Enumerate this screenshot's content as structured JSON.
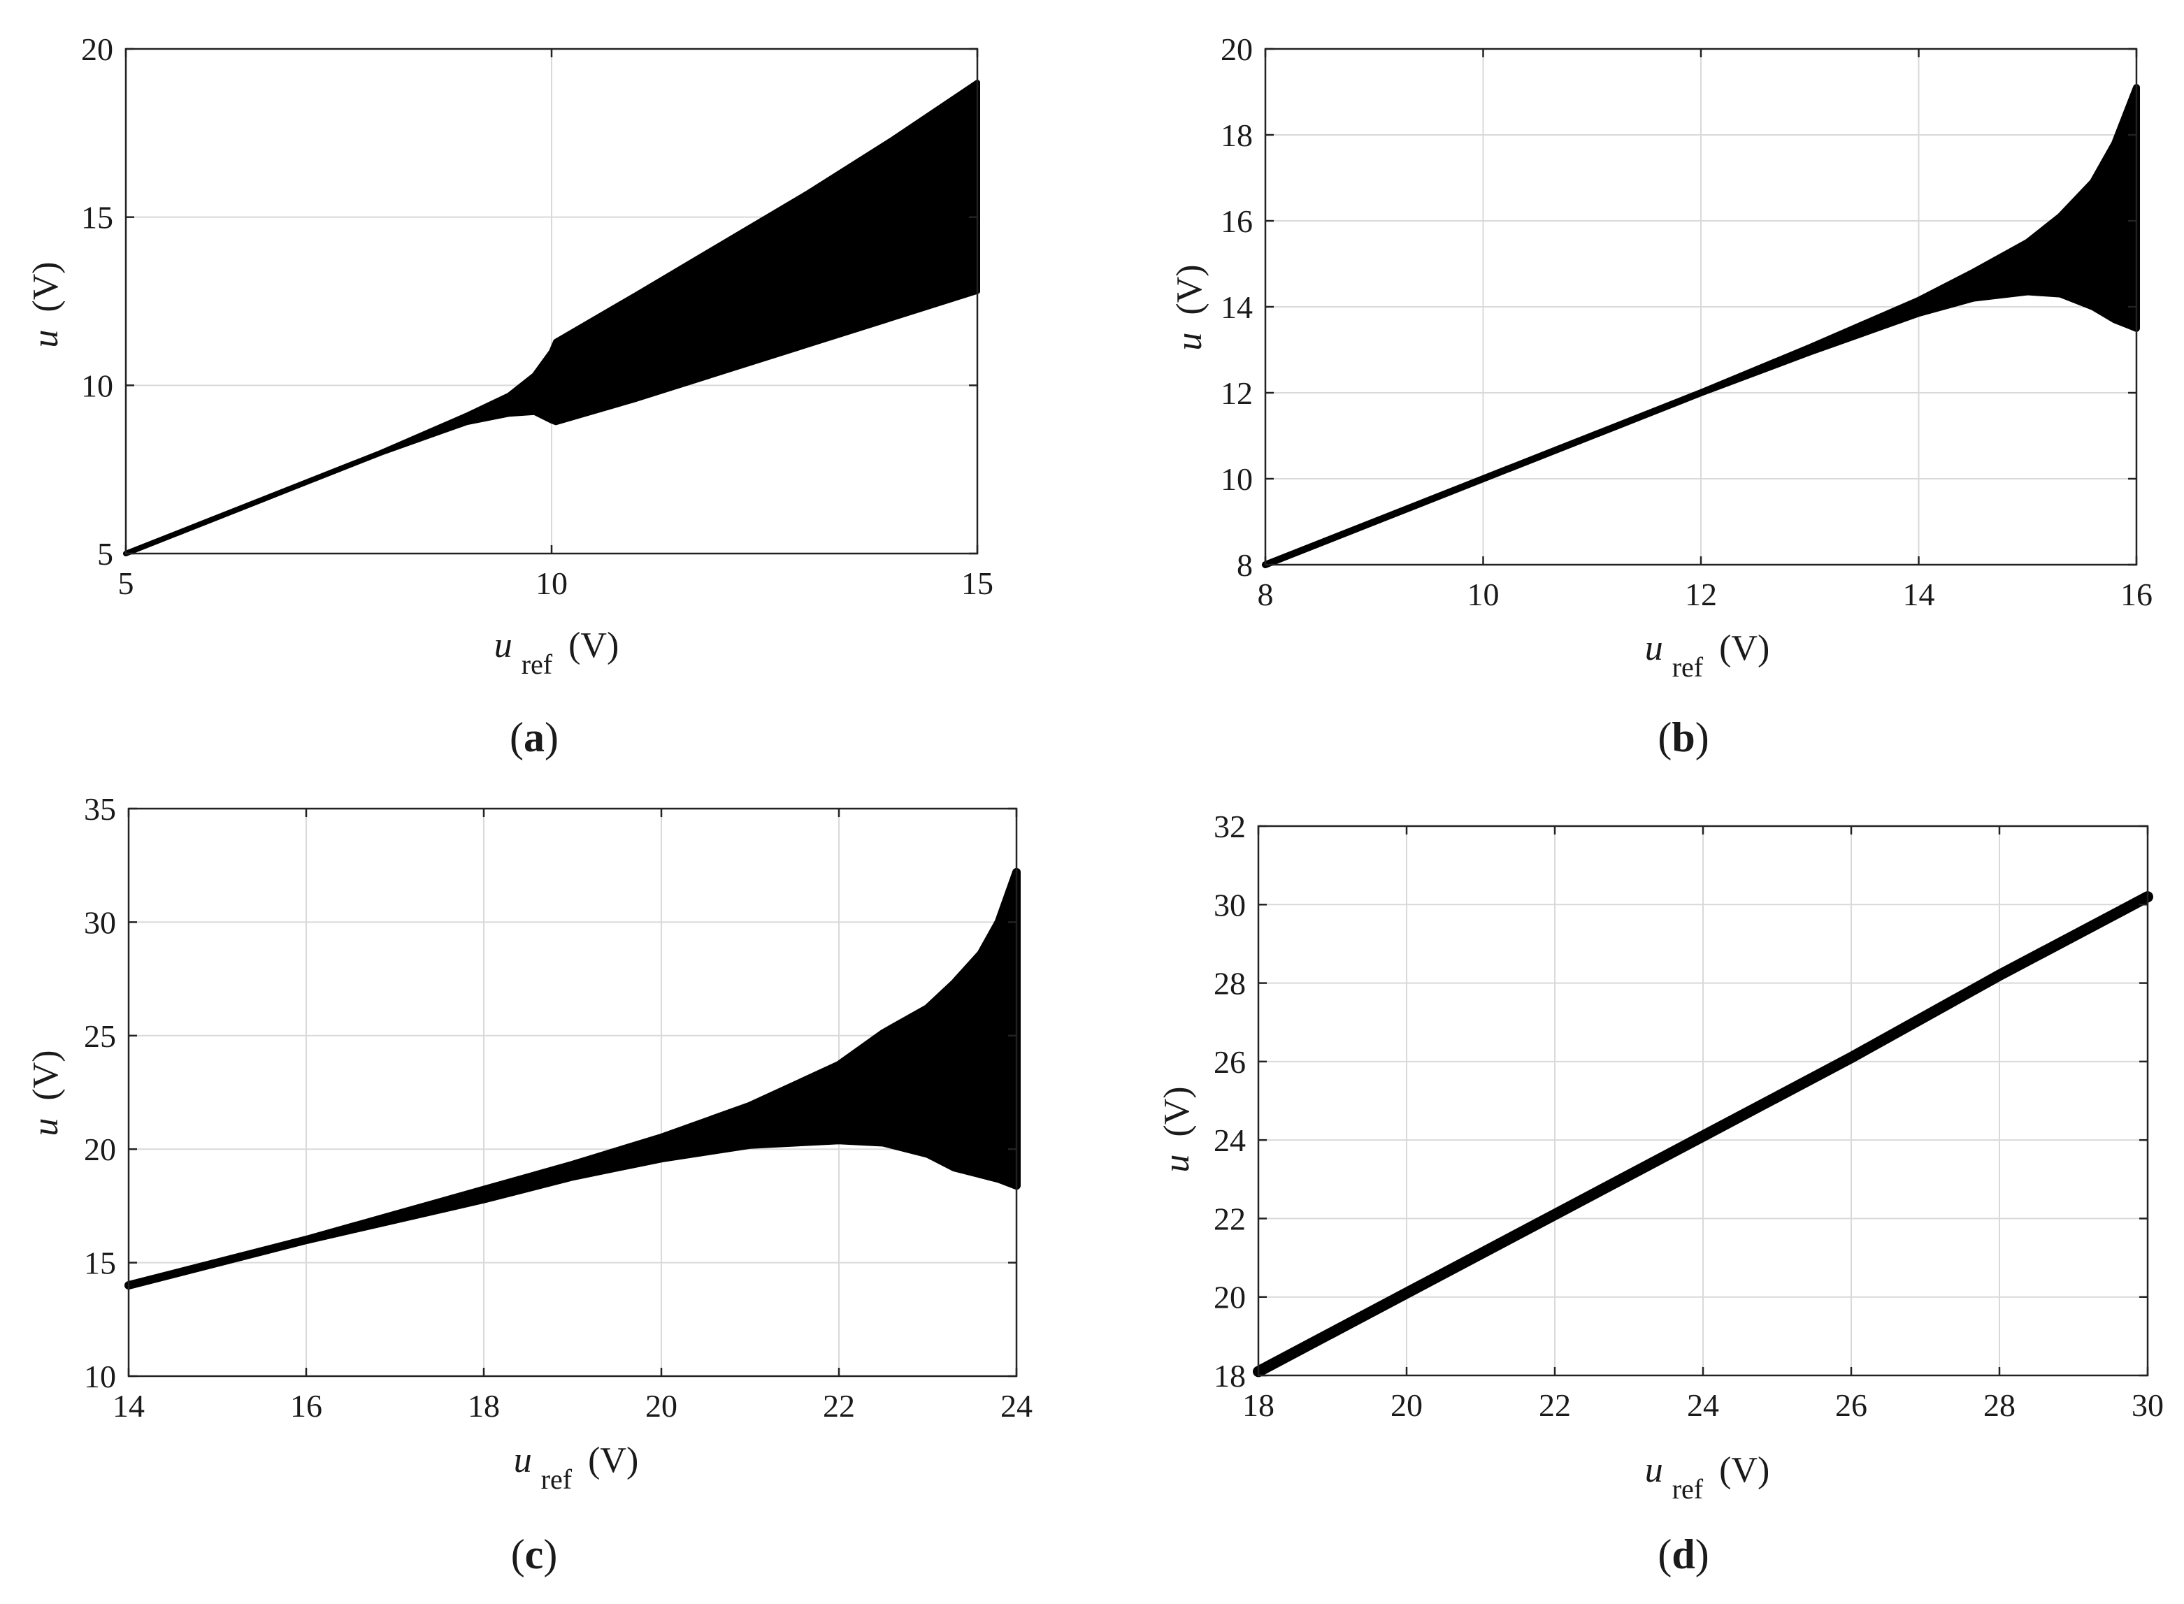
{
  "figure": {
    "panels": [
      {
        "id": "a",
        "panel_label": "a",
        "xlabel": {
          "symbol": "u",
          "subscript": "ref",
          "unit": "(V)"
        },
        "ylabel": {
          "symbol": "u",
          "unit": "(V)"
        }
      },
      {
        "id": "b",
        "panel_label": "b",
        "xlabel": {
          "symbol": "u",
          "subscript": "ref",
          "unit": "(V)"
        },
        "ylabel": {
          "symbol": "u",
          "unit": "(V)"
        }
      },
      {
        "id": "c",
        "panel_label": "c",
        "xlabel": {
          "symbol": "u",
          "subscript": "ref",
          "unit": "(V)"
        },
        "ylabel": {
          "symbol": "u",
          "unit": "(V)"
        }
      },
      {
        "id": "d",
        "panel_label": "d",
        "xlabel": {
          "symbol": "u",
          "subscript": "ref",
          "unit": "(V)"
        },
        "ylabel": {
          "symbol": "u",
          "unit": "(V)"
        }
      }
    ]
  },
  "chart_data": [
    {
      "type": "area",
      "panel": "a",
      "title": "",
      "xlabel": "uref (V)",
      "ylabel": "u (V)",
      "xlim": [
        5,
        15
      ],
      "ylim": [
        5,
        20
      ],
      "xticks": [
        5,
        10,
        15
      ],
      "yticks": [
        5,
        10,
        15,
        20
      ],
      "grid": true,
      "fill_color": "#000000",
      "series": [
        {
          "x": [
            5,
            6,
            7,
            8,
            9,
            9.5,
            9.8,
            10,
            10.05,
            11,
            12,
            13,
            14,
            15
          ],
          "lower": [
            5,
            6,
            7,
            8,
            8.9,
            9.15,
            9.2,
            8.95,
            8.9,
            9.6,
            10.4,
            11.2,
            12.0,
            12.8
          ],
          "upper": [
            5,
            6,
            7,
            8,
            9.1,
            9.7,
            10.3,
            11.0,
            11.3,
            12.7,
            14.2,
            15.7,
            17.3,
            19.0
          ]
        }
      ]
    },
    {
      "type": "area",
      "panel": "b",
      "title": "",
      "xlabel": "uref (V)",
      "ylabel": "u (V)",
      "xlim": [
        8,
        16
      ],
      "ylim": [
        8,
        20
      ],
      "xticks": [
        8,
        10,
        12,
        14,
        16
      ],
      "yticks": [
        8,
        10,
        12,
        14,
        16,
        18,
        20
      ],
      "grid": true,
      "fill_color": "#000000",
      "series": [
        {
          "x": [
            8,
            9,
            10,
            11,
            12,
            13,
            13.5,
            14,
            14.5,
            15,
            15.3,
            15.6,
            15.8,
            16
          ],
          "lower": [
            8,
            9,
            10,
            11,
            12,
            12.95,
            13.4,
            13.85,
            14.2,
            14.35,
            14.3,
            14.0,
            13.7,
            13.5
          ],
          "upper": [
            8,
            9,
            10,
            11,
            12,
            13.05,
            13.6,
            14.15,
            14.8,
            15.5,
            16.1,
            16.9,
            17.8,
            19.1
          ]
        }
      ]
    },
    {
      "type": "area",
      "panel": "c",
      "title": "",
      "xlabel": "uref (V)",
      "ylabel": "u (V)",
      "xlim": [
        14,
        24
      ],
      "ylim": [
        10,
        35
      ],
      "xticks": [
        14,
        16,
        18,
        20,
        22,
        24
      ],
      "yticks": [
        10,
        15,
        20,
        25,
        30,
        35
      ],
      "grid": true,
      "fill_color": "#000000",
      "series": [
        {
          "x": [
            14,
            16,
            17,
            18,
            19,
            20,
            21,
            22,
            22.5,
            23,
            23.3,
            23.6,
            23.8,
            24
          ],
          "lower": [
            14,
            16,
            16.9,
            17.8,
            18.8,
            19.6,
            20.2,
            20.4,
            20.3,
            19.8,
            19.2,
            18.9,
            18.7,
            18.4
          ],
          "upper": [
            14,
            16,
            17.1,
            18.2,
            19.3,
            20.5,
            21.9,
            23.7,
            25.1,
            26.2,
            27.3,
            28.6,
            30.0,
            32.2
          ]
        }
      ]
    },
    {
      "type": "line",
      "panel": "d",
      "title": "",
      "xlabel": "uref (V)",
      "ylabel": "u (V)",
      "xlim": [
        18,
        30
      ],
      "ylim": [
        18,
        32
      ],
      "xticks": [
        18,
        20,
        22,
        24,
        26,
        28,
        30
      ],
      "yticks": [
        18,
        20,
        22,
        24,
        26,
        28,
        30,
        32
      ],
      "grid": true,
      "line_color": "#000000",
      "series": [
        {
          "x": [
            18,
            20,
            22,
            24,
            26,
            28,
            30
          ],
          "y": [
            18.1,
            20.1,
            22.1,
            24.1,
            26.1,
            28.2,
            30.2
          ]
        }
      ]
    }
  ]
}
